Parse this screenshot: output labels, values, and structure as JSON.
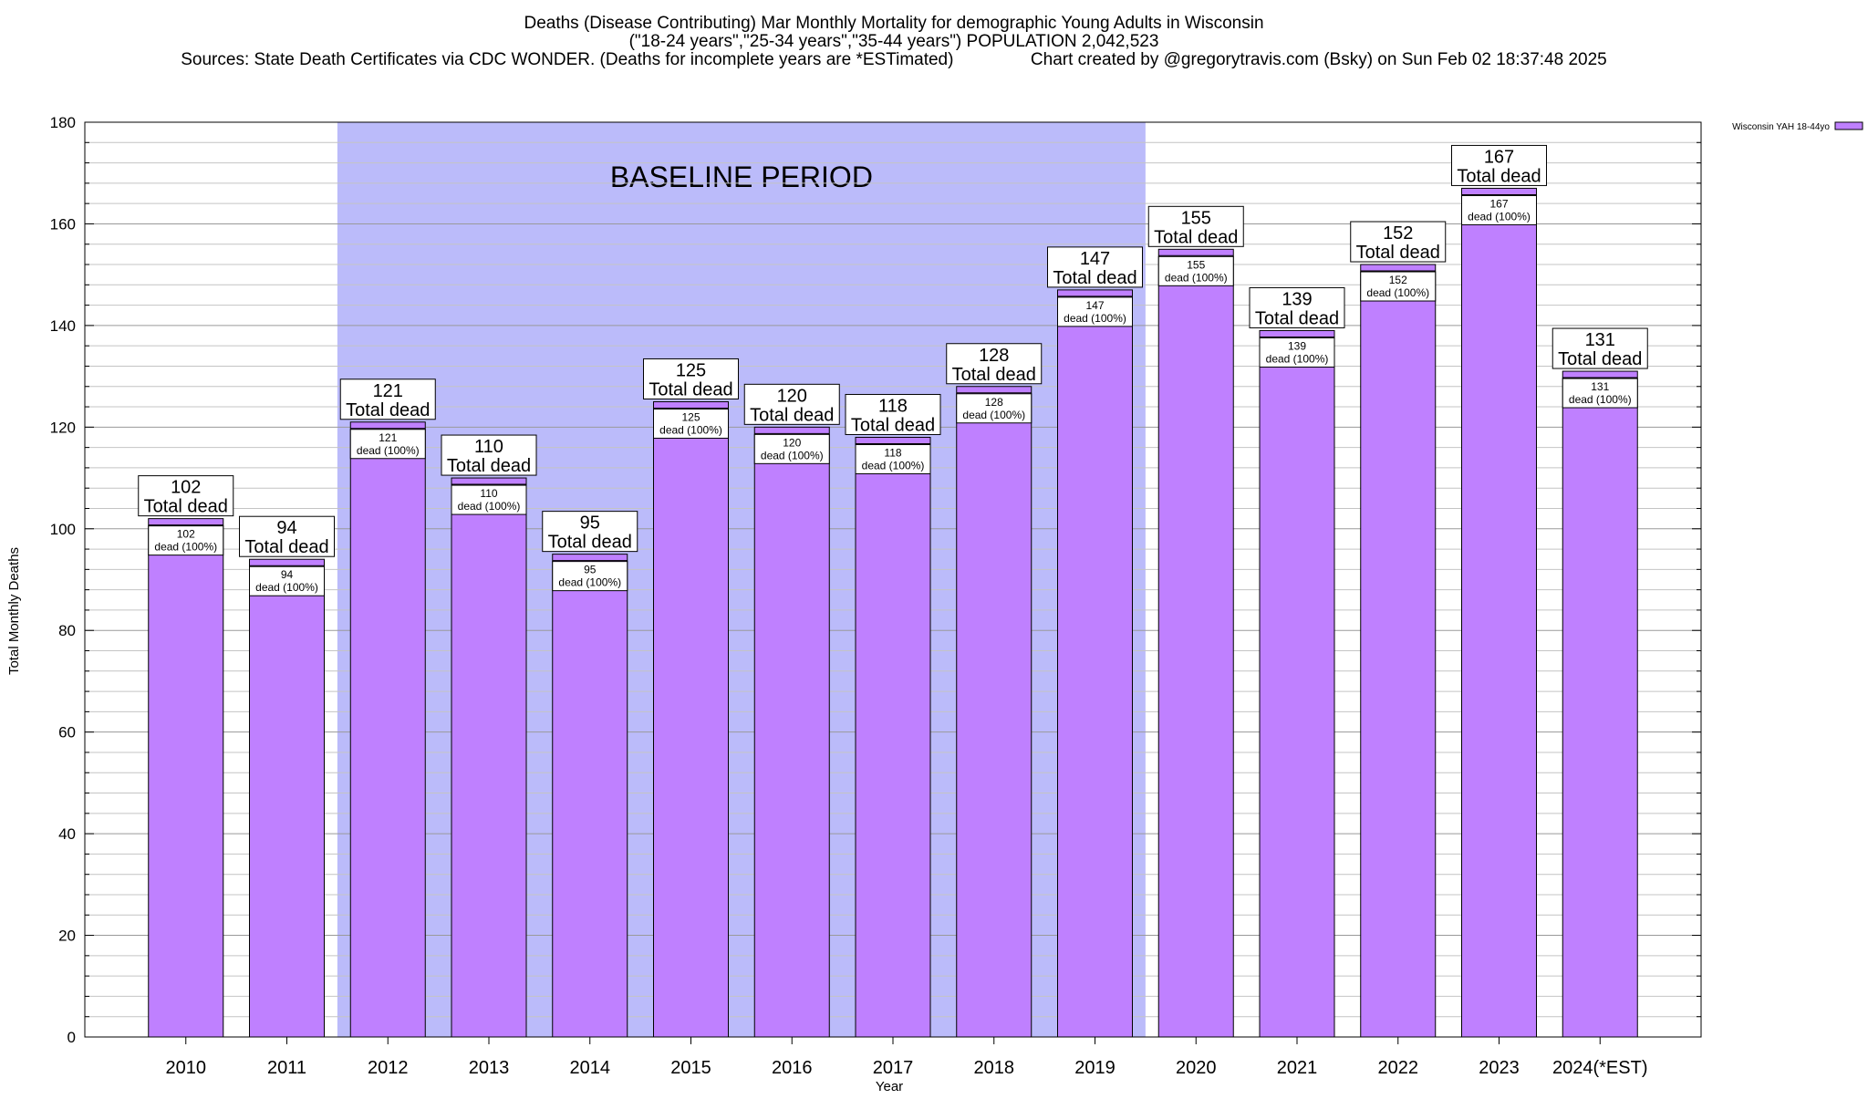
{
  "chart_data": {
    "type": "bar",
    "title_lines": [
      "Deaths (Disease Contributing) Mar Monthly Mortality for demographic Young Adults in Wisconsin",
      "(\"18-24 years\",\"25-34 years\",\"35-44 years\") POPULATION 2,042,523",
      "Sources: State Death Certificates via CDC WONDER. (Deaths for incomplete years are *ESTimated)                Chart created by @gregorytravis.com (Bsky) on Sun Feb 02 18:37:48 2025"
    ],
    "xlabel": "Year",
    "ylabel": "Total Monthly Deaths",
    "ylim": [
      0,
      180
    ],
    "yticks": [
      0,
      20,
      40,
      60,
      80,
      100,
      120,
      140,
      160,
      180
    ],
    "categories": [
      "2010",
      "2011",
      "2012",
      "2013",
      "2014",
      "2015",
      "2016",
      "2017",
      "2018",
      "2019",
      "2020",
      "2021",
      "2022",
      "2023",
      "2024(*EST)"
    ],
    "series": [
      {
        "name": "Wisconsin YAH 18-44yo",
        "color": "#bf80ff",
        "values": [
          102,
          94,
          121,
          110,
          95,
          125,
          120,
          118,
          128,
          147,
          155,
          139,
          152,
          167,
          131
        ]
      }
    ],
    "total_label": "Total dead",
    "inner_label": "dead (100%)",
    "baseline": {
      "label": "BASELINE PERIOD",
      "from": "2012",
      "to": "2019",
      "color": "#bbbbfa"
    },
    "grid": true,
    "legend_position": "top-right"
  }
}
